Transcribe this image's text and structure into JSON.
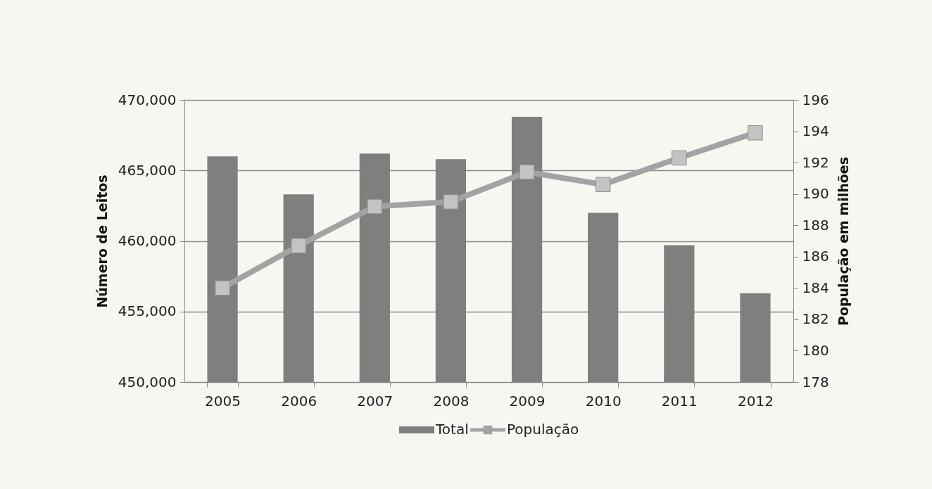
{
  "chart_data": {
    "type": "bar",
    "ylabel": "Número de Leitos",
    "y2label": "População em milhões",
    "categories": [
      "2005",
      "2006",
      "2007",
      "2008",
      "2009",
      "2010",
      "2011",
      "2012"
    ],
    "series": [
      {
        "name": "Total",
        "color": "#7f7f7f",
        "values": [
          466000,
          463300,
          466200,
          465800,
          468800,
          462000,
          459700,
          456300
        ]
      },
      {
        "name": "População",
        "type": "line",
        "axis": "y2",
        "color": "#a3a3a3",
        "values": [
          184.0,
          186.7,
          189.2,
          189.5,
          191.4,
          190.6,
          192.3,
          193.9
        ]
      }
    ],
    "ylim": [
      450000,
      470000
    ],
    "yticks": [
      {
        "value": 450000,
        "label": "450,000"
      },
      {
        "value": 455000,
        "label": "455,000"
      },
      {
        "value": 460000,
        "label": "460,000"
      },
      {
        "value": 465000,
        "label": "465,000"
      },
      {
        "value": 470000,
        "label": "470,000"
      }
    ],
    "y2lim": [
      178,
      196
    ],
    "y2ticks": [
      178,
      180,
      182,
      184,
      186,
      188,
      190,
      192,
      194,
      196
    ],
    "grid": "y",
    "legend": "bottom",
    "marker": "square",
    "line_style": "solid"
  }
}
